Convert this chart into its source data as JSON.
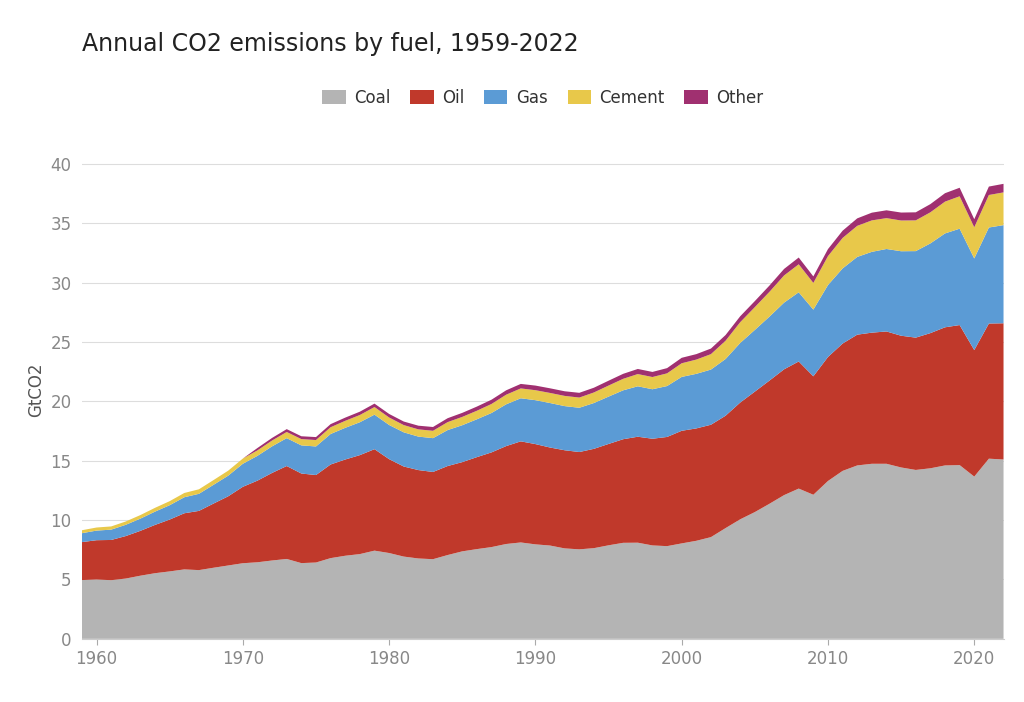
{
  "title": "Annual CO2 emissions by fuel, 1959-2022",
  "ylabel": "GtCO2",
  "years": [
    1959,
    1960,
    1961,
    1962,
    1963,
    1964,
    1965,
    1966,
    1967,
    1968,
    1969,
    1970,
    1971,
    1972,
    1973,
    1974,
    1975,
    1976,
    1977,
    1978,
    1979,
    1980,
    1981,
    1982,
    1983,
    1984,
    1985,
    1986,
    1987,
    1988,
    1989,
    1990,
    1991,
    1992,
    1993,
    1994,
    1995,
    1996,
    1997,
    1998,
    1999,
    2000,
    2001,
    2002,
    2003,
    2004,
    2005,
    2006,
    2007,
    2008,
    2009,
    2010,
    2011,
    2012,
    2013,
    2014,
    2015,
    2016,
    2017,
    2018,
    2019,
    2020,
    2021,
    2022
  ],
  "coal": [
    4.95,
    5.0,
    4.94,
    5.08,
    5.32,
    5.53,
    5.68,
    5.85,
    5.79,
    5.99,
    6.18,
    6.37,
    6.45,
    6.6,
    6.73,
    6.38,
    6.43,
    6.8,
    7.0,
    7.14,
    7.43,
    7.23,
    6.93,
    6.77,
    6.71,
    7.06,
    7.37,
    7.56,
    7.73,
    7.99,
    8.12,
    7.96,
    7.86,
    7.62,
    7.54,
    7.64,
    7.88,
    8.09,
    8.1,
    7.87,
    7.81,
    8.04,
    8.26,
    8.57,
    9.33,
    10.07,
    10.68,
    11.38,
    12.11,
    12.66,
    12.14,
    13.3,
    14.15,
    14.61,
    14.75,
    14.75,
    14.44,
    14.23,
    14.37,
    14.61,
    14.64,
    13.67,
    15.18,
    15.11
  ],
  "oil": [
    3.2,
    3.31,
    3.39,
    3.58,
    3.78,
    4.07,
    4.37,
    4.73,
    4.99,
    5.41,
    5.83,
    6.44,
    6.88,
    7.38,
    7.83,
    7.55,
    7.37,
    7.89,
    8.11,
    8.34,
    8.55,
    7.91,
    7.59,
    7.45,
    7.35,
    7.5,
    7.52,
    7.75,
    7.98,
    8.25,
    8.52,
    8.45,
    8.26,
    8.27,
    8.2,
    8.37,
    8.54,
    8.73,
    8.93,
    8.99,
    9.2,
    9.49,
    9.47,
    9.47,
    9.47,
    9.84,
    10.15,
    10.38,
    10.6,
    10.71,
    9.98,
    10.45,
    10.73,
    11.02,
    11.05,
    11.15,
    11.1,
    11.15,
    11.39,
    11.64,
    11.8,
    10.66,
    11.39,
    11.48
  ],
  "gas": [
    0.75,
    0.81,
    0.87,
    0.95,
    1.03,
    1.12,
    1.21,
    1.35,
    1.44,
    1.58,
    1.74,
    1.94,
    2.09,
    2.24,
    2.35,
    2.37,
    2.41,
    2.57,
    2.67,
    2.77,
    2.91,
    2.88,
    2.88,
    2.82,
    2.85,
    3.03,
    3.11,
    3.19,
    3.32,
    3.52,
    3.63,
    3.7,
    3.75,
    3.72,
    3.73,
    3.86,
    3.99,
    4.12,
    4.25,
    4.17,
    4.29,
    4.54,
    4.6,
    4.65,
    4.78,
    5.02,
    5.2,
    5.39,
    5.62,
    5.83,
    5.62,
    6.06,
    6.33,
    6.55,
    6.81,
    6.95,
    7.12,
    7.29,
    7.56,
    7.91,
    8.12,
    7.72,
    8.09,
    8.27
  ],
  "cement": [
    0.25,
    0.26,
    0.27,
    0.28,
    0.3,
    0.32,
    0.34,
    0.36,
    0.38,
    0.4,
    0.42,
    0.44,
    0.46,
    0.49,
    0.52,
    0.53,
    0.54,
    0.57,
    0.59,
    0.61,
    0.64,
    0.63,
    0.61,
    0.61,
    0.62,
    0.67,
    0.7,
    0.72,
    0.76,
    0.81,
    0.83,
    0.84,
    0.85,
    0.86,
    0.86,
    0.89,
    0.93,
    0.97,
    1.03,
    1.03,
    1.07,
    1.15,
    1.2,
    1.3,
    1.54,
    1.75,
    1.92,
    2.09,
    2.29,
    2.36,
    2.25,
    2.44,
    2.57,
    2.62,
    2.65,
    2.6,
    2.59,
    2.59,
    2.62,
    2.68,
    2.73,
    2.63,
    2.74,
    2.76
  ],
  "other": [
    0.0,
    0.0,
    0.0,
    0.0,
    0.0,
    0.0,
    0.0,
    0.0,
    0.0,
    0.0,
    0.0,
    0.0,
    0.2,
    0.22,
    0.24,
    0.24,
    0.25,
    0.26,
    0.27,
    0.28,
    0.29,
    0.3,
    0.3,
    0.31,
    0.32,
    0.33,
    0.34,
    0.35,
    0.36,
    0.37,
    0.38,
    0.39,
    0.39,
    0.39,
    0.4,
    0.4,
    0.41,
    0.42,
    0.43,
    0.43,
    0.44,
    0.46,
    0.46,
    0.47,
    0.48,
    0.5,
    0.51,
    0.53,
    0.55,
    0.57,
    0.55,
    0.59,
    0.61,
    0.63,
    0.65,
    0.66,
    0.67,
    0.68,
    0.69,
    0.71,
    0.72,
    0.68,
    0.71,
    0.72
  ],
  "colors": {
    "coal": "#b4b4b4",
    "oil": "#c0392b",
    "gas": "#5b9bd5",
    "cement": "#e8c84a",
    "other": "#a03070"
  },
  "legend_labels": [
    "Coal",
    "Oil",
    "Gas",
    "Cement",
    "Other"
  ],
  "ylim": [
    0,
    42
  ],
  "yticks": [
    0,
    5,
    10,
    15,
    20,
    25,
    30,
    35,
    40
  ],
  "xticks": [
    1960,
    1970,
    1980,
    1990,
    2000,
    2010,
    2020
  ],
  "xlim_start": 1959,
  "xlim_end": 2022,
  "background_color": "#ffffff",
  "title_fontsize": 17,
  "label_fontsize": 12,
  "tick_fontsize": 12,
  "legend_fontsize": 12,
  "grid_color": "#dddddd",
  "tick_color": "#888888",
  "label_color": "#555555",
  "title_color": "#222222"
}
